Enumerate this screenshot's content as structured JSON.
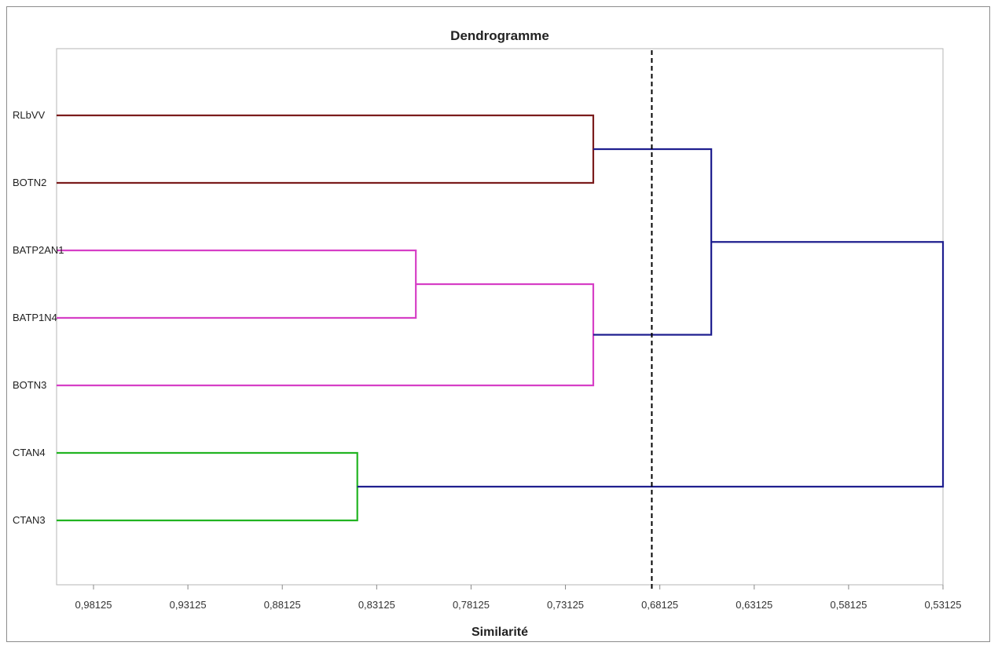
{
  "chart_data": {
    "type": "dendrogram",
    "title": "Dendrogramme",
    "xlabel": "Similarité",
    "x_axis": {
      "direction": "decreasing-left-to-right",
      "xlim": [
        1.0,
        0.53125
      ],
      "ticks": [
        0.98125,
        0.93125,
        0.88125,
        0.83125,
        0.78125,
        0.73125,
        0.68125,
        0.63125,
        0.58125,
        0.53125
      ],
      "tick_labels": [
        "0,98125",
        "0,93125",
        "0,88125",
        "0,83125",
        "0,78125",
        "0,73125",
        "0,68125",
        "0,63125",
        "0,58125",
        "0,53125"
      ]
    },
    "grid": false,
    "leaves": [
      "RLbVV",
      "BOTN2",
      "BATP2AN1",
      "BATP1N4",
      "BOTN3",
      "CTAN4",
      "CTAN3"
    ],
    "merges": [
      {
        "children": [
          "RLbVV",
          "BOTN2"
        ],
        "similarity": 0.7165,
        "color": "#7b1c1c"
      },
      {
        "children": [
          "BATP2AN1",
          "BATP1N4"
        ],
        "similarity": 0.8105,
        "color": "#d63fc6"
      },
      {
        "children": [
          "BATP2AN1+BATP1N4",
          "BOTN3"
        ],
        "similarity": 0.7165,
        "color": "#d63fc6"
      },
      {
        "children": [
          "RLbVV+BOTN2",
          "BATP2AN1+BATP1N4+BOTN3"
        ],
        "similarity": 0.654,
        "color": "#1f1f8f"
      },
      {
        "children": [
          "CTAN4",
          "CTAN3"
        ],
        "similarity": 0.8415,
        "color": "#22b422"
      },
      {
        "children": [
          "RLbVV+BOTN2+BATP2AN1+BATP1N4+BOTN3",
          "CTAN4+CTAN3"
        ],
        "similarity": 0.53125,
        "color": "#1f1f8f"
      }
    ],
    "cut_line": {
      "similarity": 0.6855,
      "style": "dashed",
      "color": "#000000"
    }
  }
}
